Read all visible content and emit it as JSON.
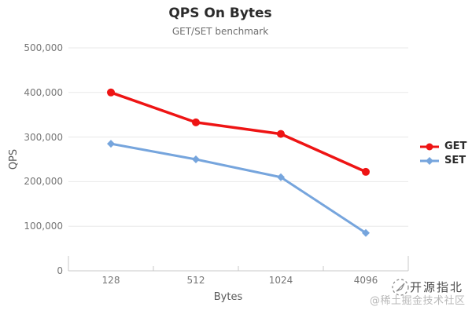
{
  "chart_data": {
    "type": "line",
    "title": "QPS On Bytes",
    "subtitle": "GET/SET benchmark",
    "xlabel": "Bytes",
    "ylabel": "QPS",
    "categories": [
      "128",
      "512",
      "1024",
      "4096"
    ],
    "series": [
      {
        "name": "GET",
        "color": "#ee1414",
        "marker": "circle",
        "line_width": 3.5,
        "values": [
          400000,
          333000,
          307000,
          222000
        ]
      },
      {
        "name": "SET",
        "color": "#76a5dd",
        "marker": "diamond",
        "line_width": 3,
        "values": [
          285000,
          250000,
          210000,
          85000
        ]
      }
    ],
    "ylim": [
      0,
      500000
    ],
    "yticks": [
      0,
      100000,
      200000,
      300000,
      400000,
      500000
    ],
    "ytick_labels": [
      "0",
      "100,000",
      "200,000",
      "300,000",
      "400,000",
      "500,000"
    ],
    "grid": true,
    "legend_position": "right"
  },
  "colors": {
    "gridline": "#e8e8e8",
    "axis": "#c9c9c9",
    "tick_text": "#757575"
  },
  "watermark": {
    "line1": "开源指北",
    "line2": "@稀土掘金技术社区"
  }
}
